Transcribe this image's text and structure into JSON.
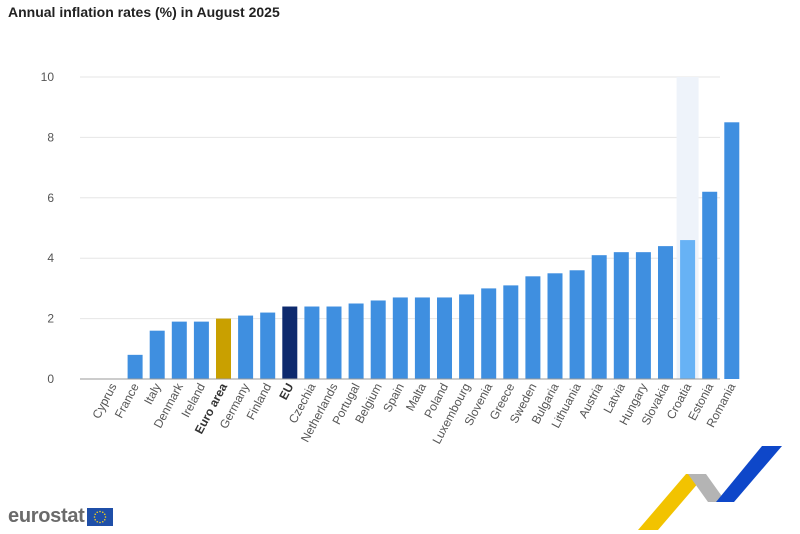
{
  "title": "Annual inflation rates (%) in August 2025",
  "logo": {
    "text": "eurostat",
    "icon": "eu-flag-icon"
  },
  "colors": {
    "bar": "#3f8fe0",
    "euro_area": "#c9a000",
    "eu": "#0e2a6e",
    "highlight": "#67b2f5",
    "highlight_band": "#eef3fa",
    "grid": "#e6e6e6",
    "axis_text": "#555555",
    "deco_yellow": "#f2c300",
    "deco_blue": "#0e47c9",
    "deco_grey": "#b4b4b4"
  },
  "chart_data": {
    "type": "bar",
    "title": "Annual inflation rates (%) in August 2025",
    "categories": [
      "Cyprus",
      "France",
      "Italy",
      "Denmark",
      "Ireland",
      "Euro area",
      "Germany",
      "Finland",
      "EU",
      "Czechia",
      "Netherlands",
      "Portugal",
      "Belgium",
      "Spain",
      "Malta",
      "Poland",
      "Luxembourg",
      "Slovenia",
      "Greece",
      "Sweden",
      "Bulgaria",
      "Lithuania",
      "Austria",
      "Latvia",
      "Hungary",
      "Slovakia",
      "Croatia",
      "Estonia",
      "Romania"
    ],
    "values": [
      0.0,
      0.8,
      1.6,
      1.9,
      1.9,
      2.0,
      2.1,
      2.2,
      2.4,
      2.4,
      2.4,
      2.5,
      2.6,
      2.7,
      2.7,
      2.7,
      2.8,
      3.0,
      3.1,
      3.4,
      3.5,
      3.6,
      4.1,
      4.2,
      4.2,
      4.4,
      4.6,
      6.2,
      8.5
    ],
    "bold_categories": [
      "Euro area",
      "EU"
    ],
    "highlighted_category": "Croatia",
    "yticks": [
      0,
      2,
      4,
      6,
      8,
      10
    ],
    "ylim": [
      0,
      10
    ],
    "xlabel": "",
    "ylabel": "",
    "grid": true,
    "legend": "none"
  }
}
